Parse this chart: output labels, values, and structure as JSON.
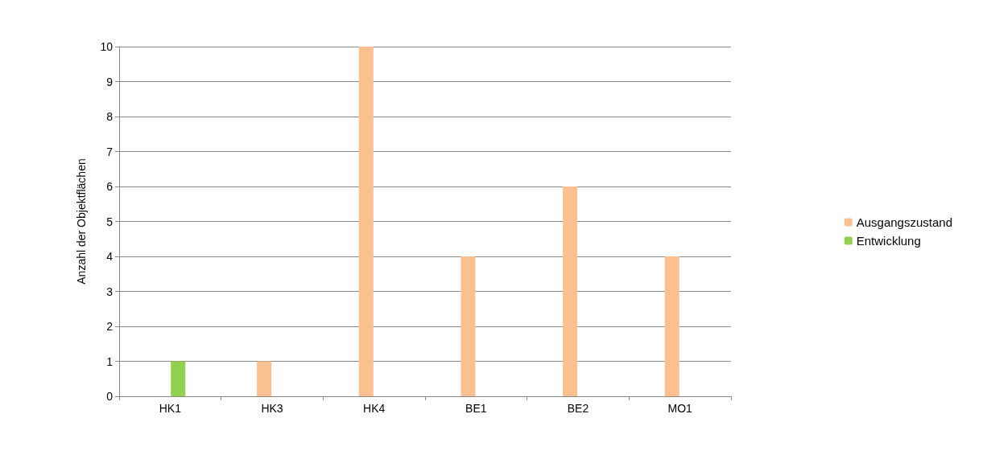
{
  "chart_data": {
    "type": "bar",
    "ylabel": "Anzahl der Objektflächen",
    "categories": [
      "HK1",
      "HK3",
      "HK4",
      "BE1",
      "BE2",
      "MO1"
    ],
    "series": [
      {
        "name": "Ausgangszustand",
        "color": "#fac090",
        "values": [
          0,
          1,
          10,
          4,
          6,
          4
        ]
      },
      {
        "name": "Entwicklung",
        "color": "#92d050",
        "values": [
          1,
          0,
          0,
          0,
          0,
          0
        ]
      }
    ],
    "ylim": [
      0,
      10
    ],
    "yticks": [
      0,
      1,
      2,
      3,
      4,
      5,
      6,
      7,
      8,
      9,
      10
    ],
    "grid": "y",
    "legend": "right"
  }
}
